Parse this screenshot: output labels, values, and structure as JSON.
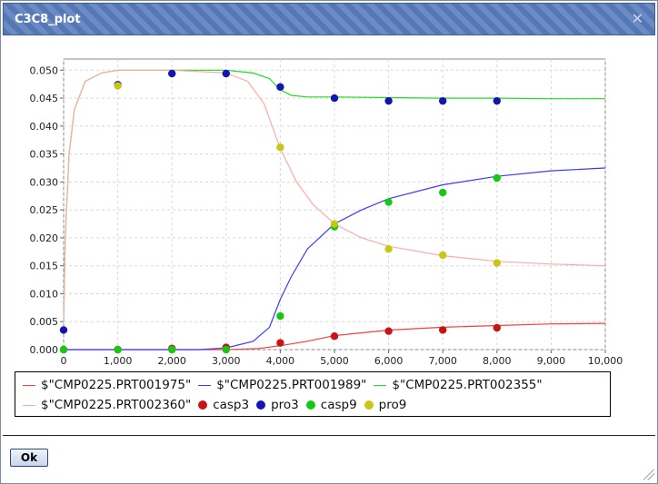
{
  "window": {
    "title": "C3C8_plot",
    "close_glyph": "✕",
    "ok_label": "Ok"
  },
  "legend": {
    "row1": [
      {
        "label": "$\"CMP0225.PRT001975\"",
        "kind": "line",
        "color": "#ff3b3b"
      },
      {
        "label": "$\"CMP0225.PRT001989\"",
        "kind": "line",
        "color": "#3a3aff"
      },
      {
        "label": "$\"CMP0225.PRT002355\"",
        "kind": "line",
        "color": "#22dd22"
      }
    ],
    "row2": [
      {
        "label": "$\"CMP0225.PRT002360\"",
        "kind": "line",
        "color": "#ffaaaa"
      },
      {
        "label": "casp3",
        "kind": "dot",
        "color": "#c81414"
      },
      {
        "label": "pro3",
        "kind": "dot",
        "color": "#1414b4"
      },
      {
        "label": "casp9",
        "kind": "dot",
        "color": "#14c814"
      },
      {
        "label": "pro9",
        "kind": "dot",
        "color": "#c8c814"
      }
    ]
  },
  "chart_data": {
    "type": "line",
    "xlim": [
      0,
      10000
    ],
    "ylim": [
      0,
      0.052
    ],
    "grid": true,
    "x_ticks": [
      "0",
      "1,000",
      "2,000",
      "3,000",
      "4,000",
      "5,000",
      "6,000",
      "7,000",
      "8,000",
      "9,000",
      "10,000"
    ],
    "x_tick_values": [
      0,
      1000,
      2000,
      3000,
      4000,
      5000,
      6000,
      7000,
      8000,
      9000,
      10000
    ],
    "y_ticks": [
      "0.000",
      "0.005",
      "0.010",
      "0.015",
      "0.020",
      "0.025",
      "0.030",
      "0.035",
      "0.040",
      "0.045",
      "0.050"
    ],
    "y_tick_values": [
      0,
      0.005,
      0.01,
      0.015,
      0.02,
      0.025,
      0.03,
      0.035,
      0.04,
      0.045,
      0.05
    ],
    "series": [
      {
        "name": "$\"CMP0225.PRT001975\"",
        "kind": "line",
        "color": "#ff3b3b",
        "x": [
          0,
          3000,
          3600,
          4000,
          4500,
          5000,
          6000,
          7000,
          8000,
          9000,
          10000
        ],
        "y": [
          0,
          0,
          0.0002,
          0.0007,
          0.0015,
          0.0025,
          0.0035,
          0.004,
          0.0043,
          0.0046,
          0.0047
        ]
      },
      {
        "name": "$\"CMP0225.PRT001989\"",
        "kind": "line",
        "color": "#3a3aff",
        "x": [
          0,
          2500,
          3000,
          3500,
          3800,
          4000,
          4200,
          4500,
          5000,
          5500,
          6000,
          7000,
          8000,
          9000,
          10000
        ],
        "y": [
          0,
          0,
          0.0003,
          0.0015,
          0.004,
          0.009,
          0.013,
          0.018,
          0.0225,
          0.025,
          0.027,
          0.0295,
          0.031,
          0.032,
          0.0325
        ]
      },
      {
        "name": "$\"CMP0225.PRT002355\"",
        "kind": "line",
        "color": "#22dd22",
        "x": [
          0,
          30,
          100,
          200,
          400,
          700,
          1000,
          2000,
          3000,
          3500,
          3800,
          4000,
          4200,
          4500,
          5000,
          6000,
          7000,
          8000,
          9000,
          10000
        ],
        "y": [
          0.005,
          0.02,
          0.035,
          0.043,
          0.048,
          0.0495,
          0.05,
          0.05,
          0.05,
          0.0495,
          0.0485,
          0.0465,
          0.0455,
          0.0452,
          0.0452,
          0.0451,
          0.045,
          0.045,
          0.0449,
          0.0449
        ]
      },
      {
        "name": "$\"CMP0225.PRT002360\"",
        "kind": "line",
        "color": "#ffaaaa",
        "x": [
          0,
          30,
          100,
          200,
          400,
          700,
          1000,
          2000,
          3000,
          3400,
          3700,
          4000,
          4300,
          4600,
          5000,
          5500,
          6000,
          7000,
          8000,
          9000,
          10000
        ],
        "y": [
          0.005,
          0.02,
          0.035,
          0.043,
          0.048,
          0.0495,
          0.05,
          0.05,
          0.0495,
          0.048,
          0.044,
          0.036,
          0.03,
          0.026,
          0.0225,
          0.02,
          0.0185,
          0.0168,
          0.0158,
          0.0153,
          0.015
        ]
      },
      {
        "name": "casp3",
        "kind": "scatter",
        "color": "#c81414",
        "x": [
          0,
          1000,
          2000,
          3000,
          4000,
          5000,
          6000,
          7000,
          8000
        ],
        "y": [
          0,
          0,
          0.0002,
          0.0004,
          0.0012,
          0.0024,
          0.0033,
          0.0035,
          0.0039
        ]
      },
      {
        "name": "pro3",
        "kind": "scatter",
        "color": "#1414b4",
        "x": [
          0,
          1000,
          2000,
          3000,
          4000,
          5000,
          6000,
          7000,
          8000
        ],
        "y": [
          0.0035,
          0.0474,
          0.0494,
          0.0494,
          0.047,
          0.045,
          0.0445,
          0.0445,
          0.0445
        ]
      },
      {
        "name": "casp9",
        "kind": "scatter",
        "color": "#14c814",
        "x": [
          0,
          1000,
          2000,
          3000,
          4000,
          5000,
          6000,
          7000,
          8000
        ],
        "y": [
          0,
          0,
          0,
          0,
          0.006,
          0.022,
          0.0264,
          0.0281,
          0.0307
        ]
      },
      {
        "name": "pro9",
        "kind": "scatter",
        "color": "#c8c814",
        "x": [
          1000,
          4000,
          5000,
          6000,
          7000,
          8000
        ],
        "y": [
          0.0472,
          0.0362,
          0.0225,
          0.018,
          0.0169,
          0.0155
        ]
      }
    ]
  }
}
